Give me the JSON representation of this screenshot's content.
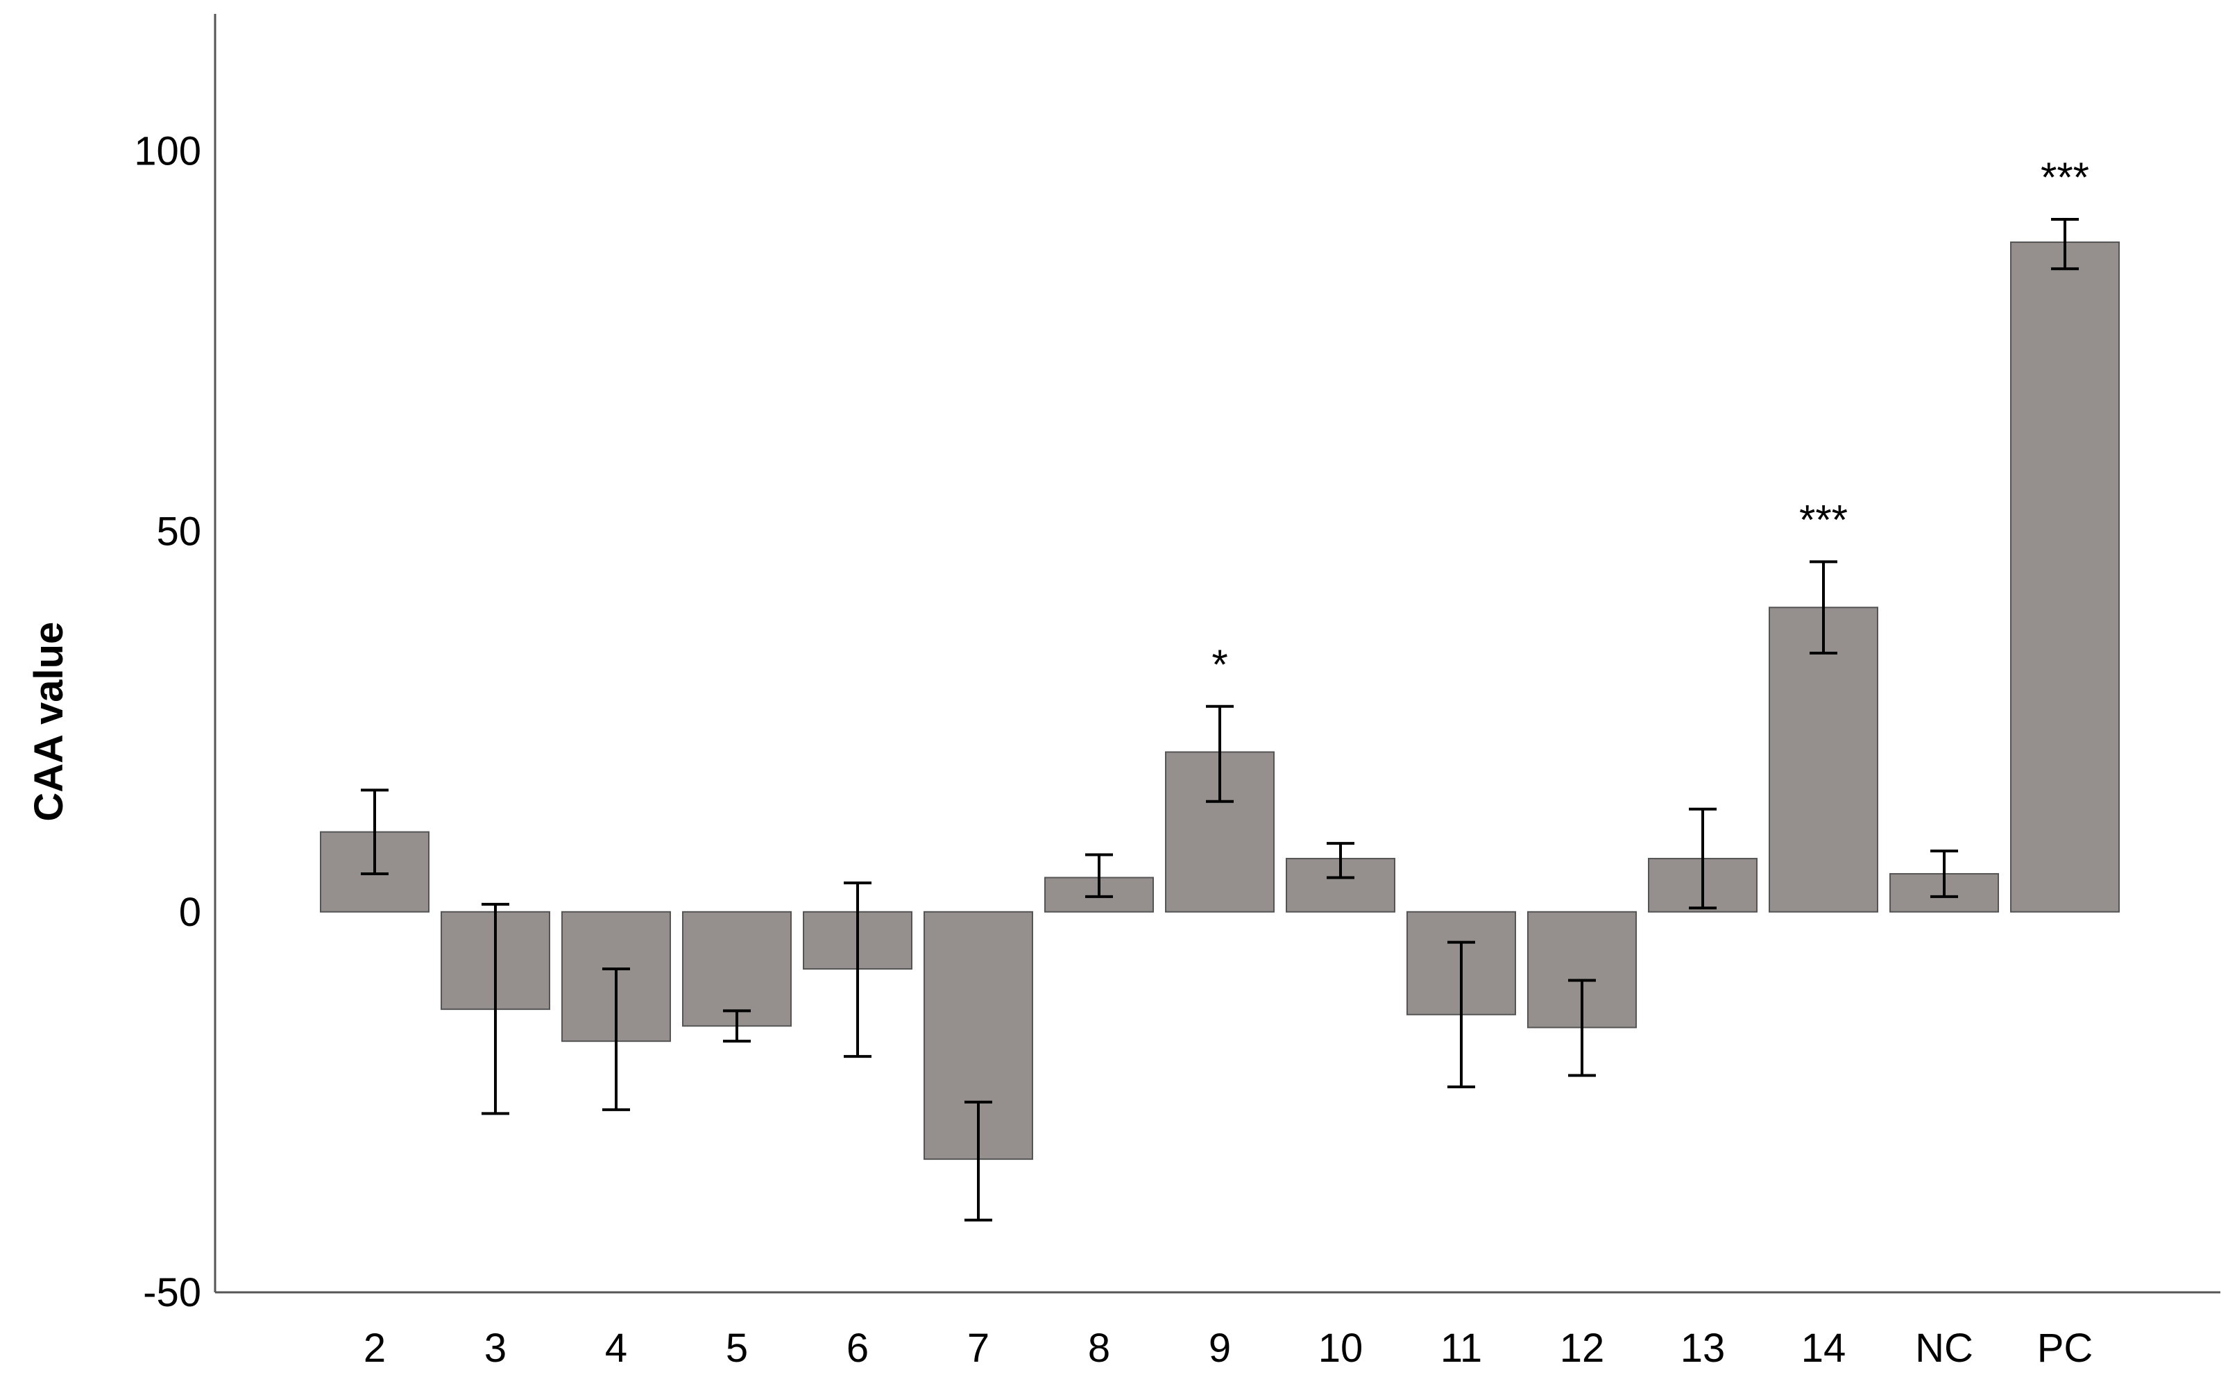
{
  "chart_data": {
    "type": "bar",
    "title": "",
    "xlabel": "",
    "ylabel": "CAA value",
    "ylim": [
      -50,
      118
    ],
    "yticks": [
      -50,
      0,
      50,
      100
    ],
    "grid": false,
    "legend": "none",
    "categories": [
      "2",
      "3",
      "4",
      "5",
      "6",
      "7",
      "8",
      "9",
      "10",
      "11",
      "12",
      "13",
      "14",
      "NC",
      "PC"
    ],
    "values": [
      10.5,
      -12.8,
      -17.0,
      -15.0,
      -7.5,
      -32.5,
      4.5,
      21.0,
      7.0,
      -13.5,
      -15.2,
      7.0,
      40.0,
      5.0,
      88.0
    ],
    "error_low": [
      5.0,
      -26.5,
      -26.0,
      -17.0,
      -19.0,
      -40.5,
      2.0,
      14.5,
      4.5,
      -23.0,
      -21.5,
      0.5,
      34.0,
      2.0,
      84.5
    ],
    "error_high": [
      16.0,
      1.0,
      -7.5,
      -13.0,
      3.8,
      -25.0,
      7.5,
      27.0,
      9.0,
      -4.0,
      -9.0,
      13.5,
      46.0,
      8.0,
      91.0
    ],
    "annotations": [
      {
        "category": "9",
        "text": "*"
      },
      {
        "category": "14",
        "text": "***"
      },
      {
        "category": "PC",
        "text": "***"
      }
    ],
    "colors": {
      "bar_fill": "#958f8e",
      "bar_stroke": "#555555",
      "axis": "#555555",
      "error_bar": "#000000",
      "text": "#000000"
    }
  }
}
